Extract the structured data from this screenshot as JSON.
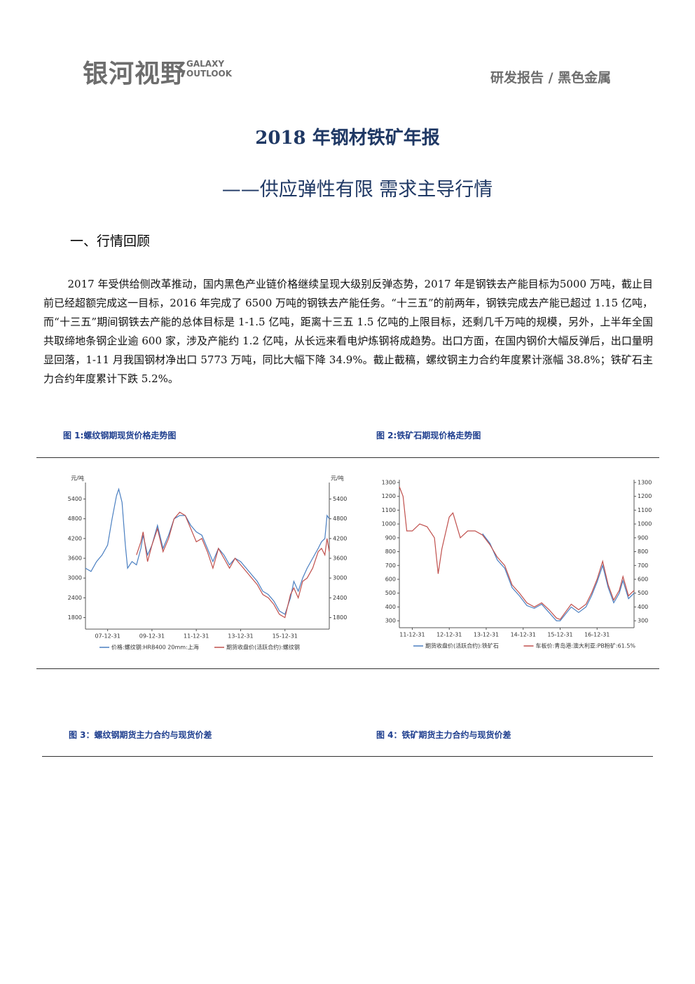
{
  "header": {
    "logo": "银河视野",
    "logo_en": "GALAXY OUTLOOK",
    "report_type": "研发报告 / 黑色金属"
  },
  "title": "2018 年钢材铁矿年报",
  "subtitle": "——供应弹性有限 需求主导行情",
  "section_heading": "一、行情回顾",
  "paragraph": "2017 年受供给侧改革推动，国内黑色产业链价格继续呈现大级别反弹态势，2017 年是钢铁去产能目标为5000 万吨，截止目前已经超额完成这一目标，2016 年完成了 6500 万吨的钢铁去产能任务。“十三五”的前两年，钢铁完成去产能已超过 1.15 亿吨，而“十三五”期间钢铁去产能的总体目标是 1-1.5 亿吨，距离十三五 1.5 亿吨的上限目标，还剩几千万吨的规模，另外，上半年全国共取缔地条钢企业逾 600 家，涉及产能约 1.2 亿吨，从长远来看电炉炼钢将成趋势。出口方面，在国内钢价大幅反弹后，出口量明显回落，1-11 月我国钢材净出口 5773 万吨，同比大幅下降 34.9%。截止截稿，螺纹钢主力合约年度累计涨幅 38.8%；铁矿石主力合约年度累计下跌 5.2%。",
  "figures": [
    {
      "caption": "图 1:螺纹钢期现货价格走势图"
    },
    {
      "caption": "图 2:铁矿石期现价格走势图"
    },
    {
      "caption": "图 3：螺纹钢期货主力合约与现货价差"
    },
    {
      "caption": "图 4：铁矿期货主力合约与现货价差"
    }
  ],
  "chart_data": [
    {
      "type": "line",
      "ylabel": "元/吨",
      "y2label": "元/吨",
      "x": [
        2007.0,
        2007.25,
        2007.5,
        2007.75,
        2008.0,
        2008.2,
        2008.4,
        2008.5,
        2008.65,
        2008.8,
        2008.9,
        2009.1,
        2009.3,
        2009.5,
        2009.6,
        2009.8,
        2010.0,
        2010.25,
        2010.5,
        2010.75,
        2011.0,
        2011.25,
        2011.5,
        2011.75,
        2012.0,
        2012.25,
        2012.5,
        2012.75,
        2013.0,
        2013.25,
        2013.5,
        2013.75,
        2014.0,
        2014.25,
        2014.5,
        2014.75,
        2015.0,
        2015.25,
        2015.5,
        2015.75,
        2016.0,
        2016.25,
        2016.4,
        2016.6,
        2016.8,
        2017.0,
        2017.25,
        2017.5,
        2017.65,
        2017.8,
        2017.9,
        2018.0
      ],
      "xlim": [
        2007.0,
        2018.0
      ],
      "xticks": [
        {
          "value": 2008.0,
          "label": "07-12-31"
        },
        {
          "value": 2010.0,
          "label": "09-12-31"
        },
        {
          "value": 2012.0,
          "label": "11-12-31"
        },
        {
          "value": 2014.0,
          "label": "13-12-31"
        },
        {
          "value": 2016.0,
          "label": "15-12-31"
        }
      ],
      "ylim": [
        1450,
        5900
      ],
      "yticks": [
        1800,
        2400,
        3000,
        3600,
        4200,
        4800,
        5400
      ],
      "y2lim": [
        1450,
        5900
      ],
      "y2ticks": [
        1800,
        2400,
        3000,
        3600,
        4200,
        4800,
        5400
      ],
      "series": [
        {
          "name": "价格:螺纹钢:HRB400 20mm:上海",
          "color": "#4a7fc1",
          "values": [
            3300,
            3200,
            3500,
            3700,
            4000,
            4800,
            5500,
            5700,
            5300,
            4000,
            3300,
            3500,
            3400,
            3900,
            4300,
            3700,
            4000,
            4600,
            3900,
            4300,
            4800,
            4900,
            4900,
            4600,
            4400,
            4300,
            3900,
            3500,
            3900,
            3700,
            3400,
            3600,
            3500,
            3300,
            3100,
            2900,
            2600,
            2500,
            2300,
            2000,
            1900,
            2400,
            2900,
            2600,
            3000,
            3300,
            3600,
            3900,
            4100,
            4200,
            4900,
            4800
          ]
        },
        {
          "name": "期货收盘价(活跃合约):螺纹钢",
          "color": "#c0504d",
          "axis": "y2",
          "values": [
            null,
            null,
            null,
            null,
            null,
            null,
            null,
            null,
            null,
            null,
            null,
            null,
            3700,
            4100,
            4400,
            3500,
            4000,
            4500,
            3800,
            4200,
            4800,
            5000,
            4900,
            4500,
            4100,
            4200,
            3800,
            3300,
            3900,
            3600,
            3300,
            3600,
            3400,
            3200,
            3000,
            2800,
            2500,
            2400,
            2200,
            1900,
            1800,
            2500,
            2700,
            2400,
            2900,
            3000,
            3300,
            3800,
            3900,
            3700,
            4200,
            3800
          ]
        }
      ]
    },
    {
      "type": "line",
      "x": [
        2011.65,
        2011.75,
        2011.85,
        2012.0,
        2012.2,
        2012.4,
        2012.6,
        2012.7,
        2012.8,
        2013.0,
        2013.1,
        2013.3,
        2013.5,
        2013.7,
        2013.9,
        2014.1,
        2014.3,
        2014.5,
        2014.7,
        2014.9,
        2015.1,
        2015.3,
        2015.5,
        2015.7,
        2015.9,
        2016.0,
        2016.3,
        2016.5,
        2016.7,
        2016.85,
        2017.0,
        2017.15,
        2017.3,
        2017.45,
        2017.6,
        2017.7,
        2017.85,
        2018.0
      ],
      "xlim": [
        2011.65,
        2018.0
      ],
      "xticks": [
        {
          "value": 2012.0,
          "label": "11-12-31"
        },
        {
          "value": 2013.0,
          "label": "12-12-31"
        },
        {
          "value": 2014.0,
          "label": "13-12-31"
        },
        {
          "value": 2015.0,
          "label": "14-12-31"
        },
        {
          "value": 2016.0,
          "label": "15-12-31"
        },
        {
          "value": 2017.0,
          "label": "16-12-31"
        }
      ],
      "ylim": [
        250,
        1320
      ],
      "yticks": [
        300,
        400,
        500,
        600,
        700,
        800,
        900,
        1000,
        1100,
        1200,
        1300
      ],
      "y2lim": [
        250,
        1320
      ],
      "y2ticks": [
        300,
        400,
        500,
        600,
        700,
        800,
        900,
        1000,
        1100,
        1200,
        1300
      ],
      "series": [
        {
          "name": "期货收盘价(活跃合约):铁矿石",
          "color": "#4a7fc1",
          "values": [
            null,
            null,
            null,
            null,
            null,
            null,
            null,
            null,
            null,
            null,
            null,
            null,
            null,
            null,
            930,
            860,
            740,
            680,
            540,
            480,
            410,
            390,
            420,
            360,
            300,
            300,
            400,
            360,
            400,
            480,
            580,
            700,
            540,
            430,
            500,
            590,
            460,
            500
          ]
        },
        {
          "name": "车板价:青岛港:澳大利亚:PB粉矿:61.5%",
          "color": "#c0504d",
          "axis": "y2",
          "values": [
            1270,
            1200,
            950,
            950,
            1000,
            980,
            900,
            640,
            820,
            1050,
            1080,
            900,
            950,
            950,
            920,
            850,
            760,
            700,
            560,
            500,
            430,
            400,
            430,
            380,
            320,
            310,
            420,
            380,
            420,
            500,
            600,
            730,
            560,
            450,
            520,
            620,
            480,
            520
          ]
        }
      ]
    }
  ]
}
